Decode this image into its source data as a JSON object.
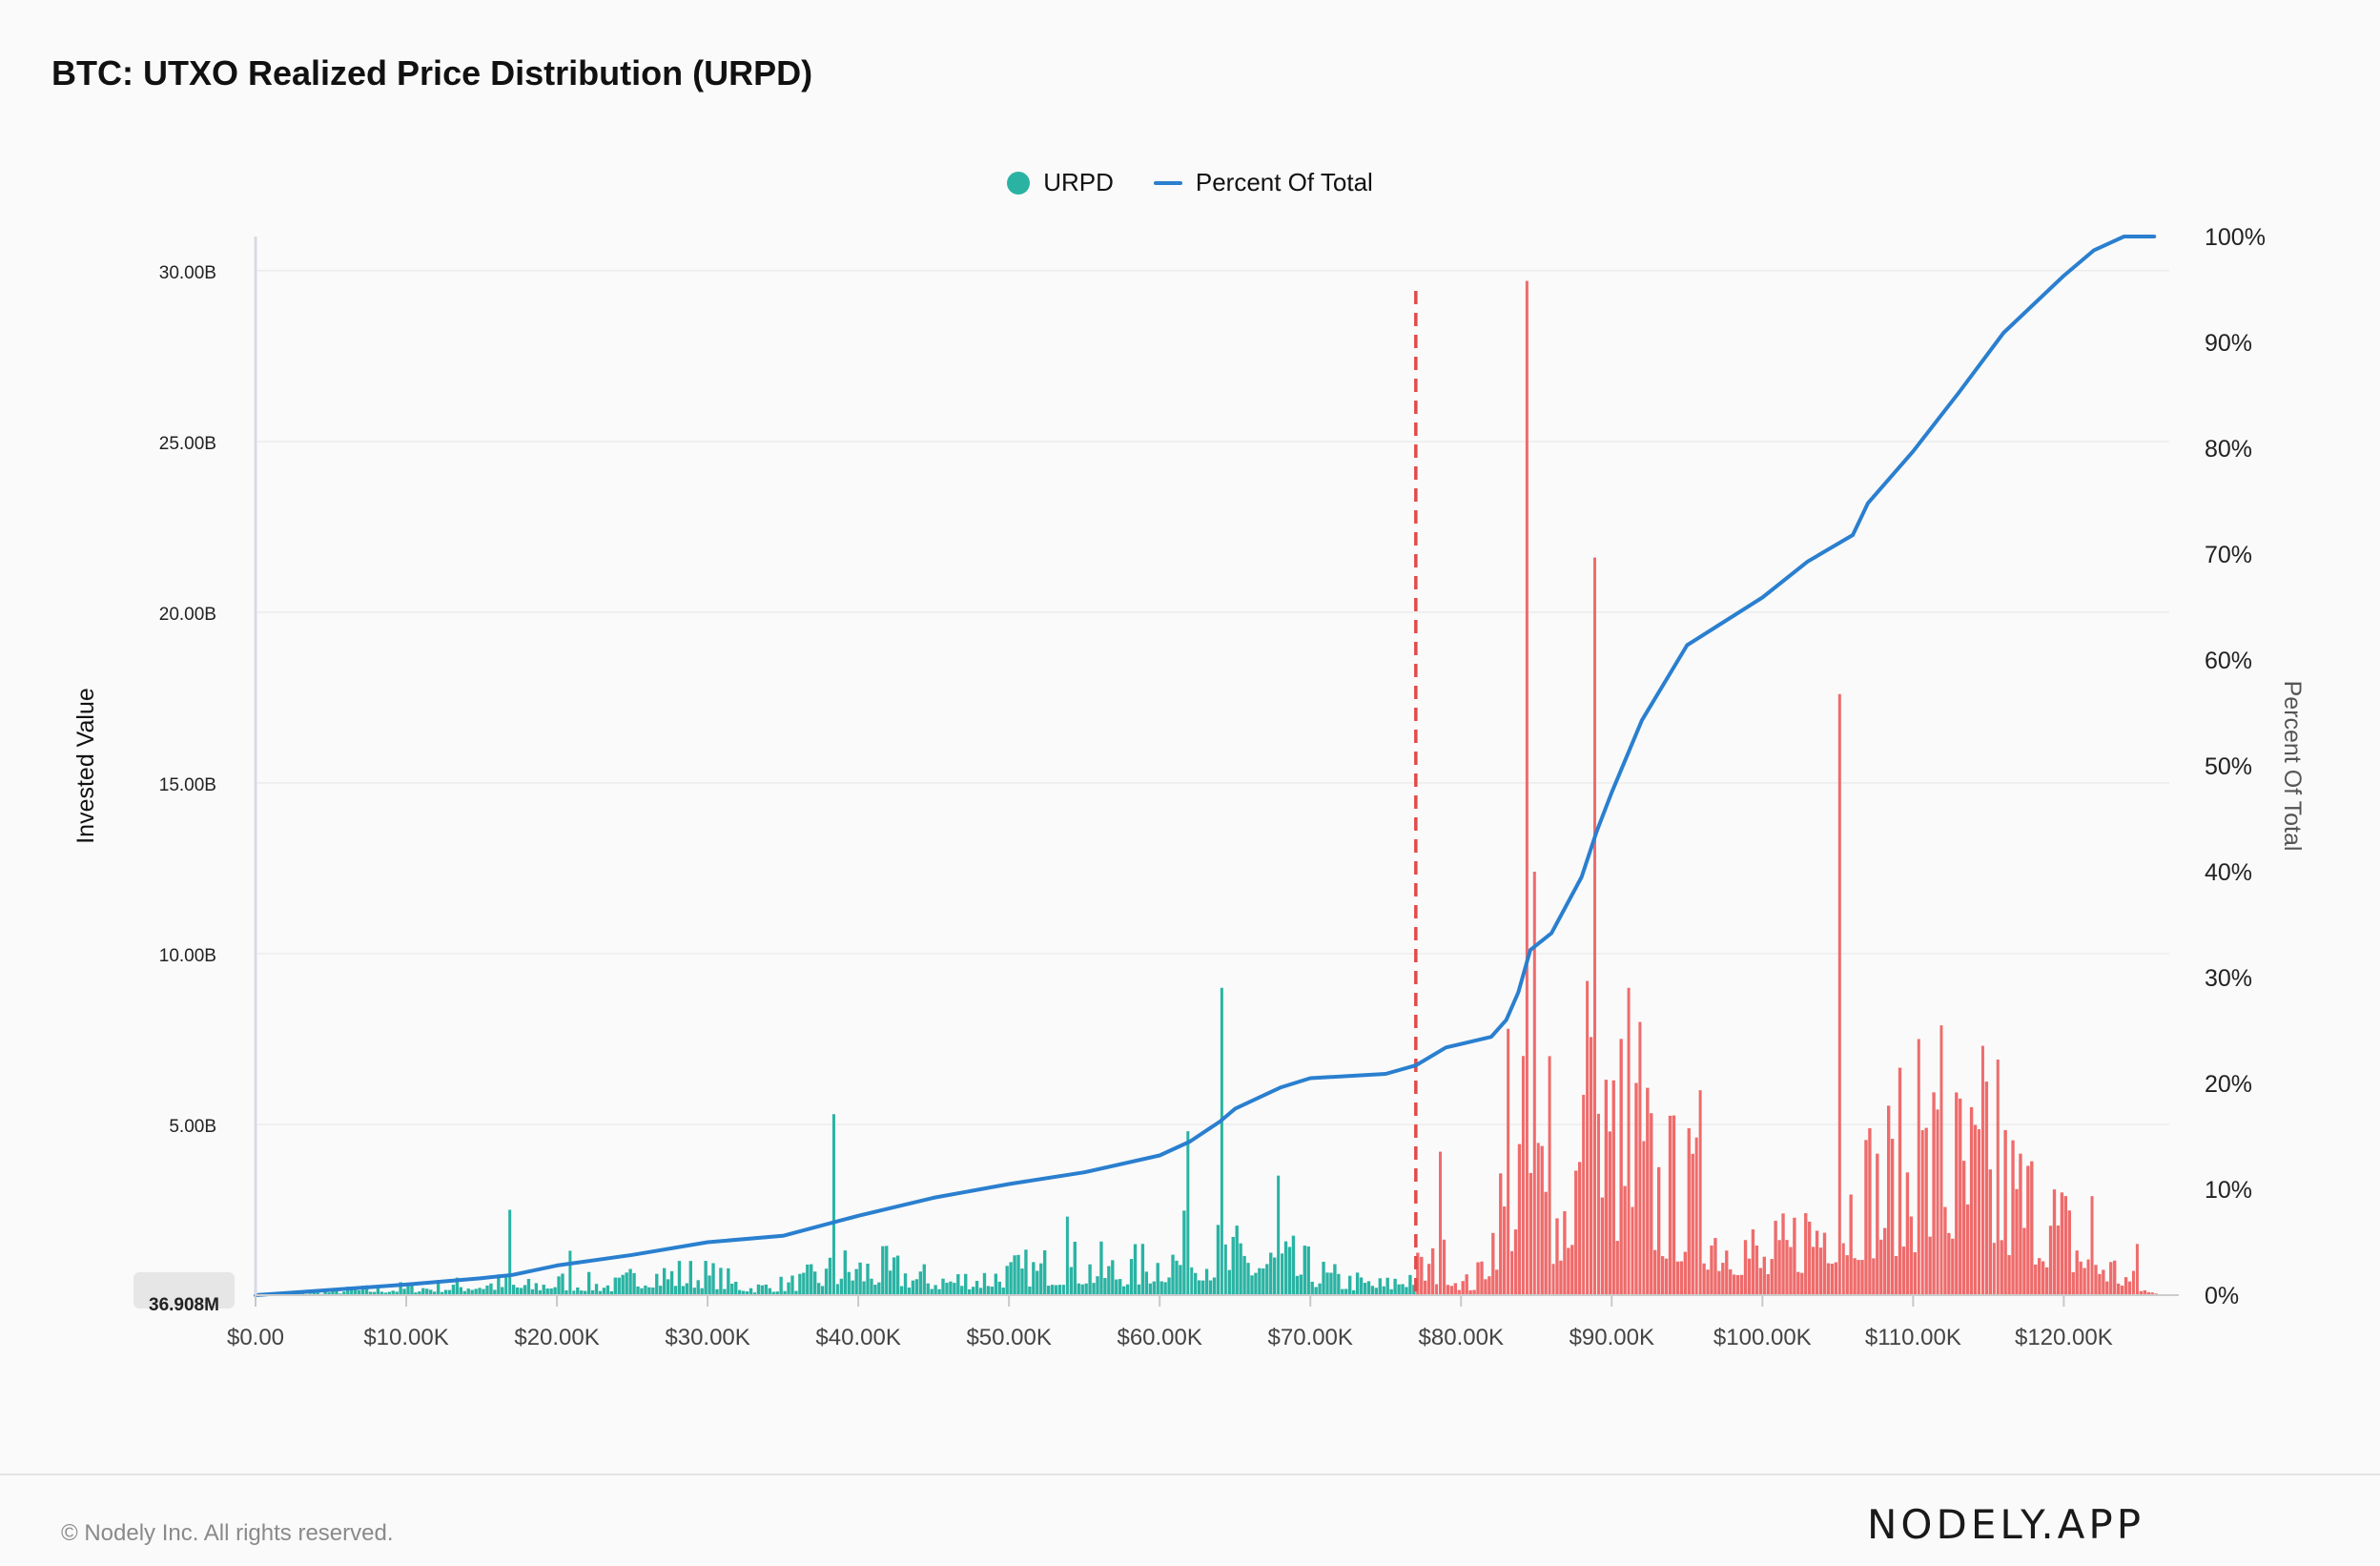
{
  "page": {
    "title": "BTC: UTXO Realized Price Distribution (URPD)",
    "copyright": "© Nodely Inc. All rights reserved.",
    "brand": "NODELY.APP"
  },
  "colors": {
    "below_price": "#2ab3a3",
    "above_price": "#ef6b6b",
    "cumulative_line": "#2a7fcf",
    "price_marker": "#e24b4b"
  },
  "chart_data": {
    "type": "bar",
    "legend": [
      {
        "name": "URPD",
        "symbol": "dot",
        "color": "#2ab3a3"
      },
      {
        "name": "Percent Of Total",
        "symbol": "line",
        "color": "#2a7fcf"
      }
    ],
    "legend_position": "top-center",
    "xlabel": "",
    "ylabel": "Invested Value",
    "y2label": "Percent Of Total",
    "xlim": [
      0,
      127000
    ],
    "ylim": [
      0,
      31000000000
    ],
    "y2lim": [
      0,
      100
    ],
    "x_ticks": [
      "$0.00",
      "$10.00K",
      "$20.00K",
      "$30.00K",
      "$40.00K",
      "$50.00K",
      "$60.00K",
      "$70.00K",
      "$80.00K",
      "$90.00K",
      "$100.00K",
      "$110.00K",
      "$120.00K"
    ],
    "x_tick_values": [
      0,
      10000,
      20000,
      30000,
      40000,
      50000,
      60000,
      70000,
      80000,
      90000,
      100000,
      110000,
      120000
    ],
    "y_ticks": [
      "5.00B",
      "10.00B",
      "15.00B",
      "20.00B",
      "25.00B",
      "30.00B"
    ],
    "y_tick_values": [
      5000000000,
      10000000000,
      15000000000,
      20000000000,
      25000000000,
      30000000000
    ],
    "y_min_badge": "36.908M",
    "y2_ticks": [
      "0%",
      "10%",
      "20%",
      "30%",
      "40%",
      "50%",
      "60%",
      "70%",
      "80%",
      "90%",
      "100%"
    ],
    "current_price_marker": 77000,
    "grid": true,
    "bar_width_price": 250,
    "peaks": [
      {
        "x": 16800,
        "value": 2500000000
      },
      {
        "x": 21000,
        "value": 1300000000
      },
      {
        "x": 38500,
        "value": 5300000000
      },
      {
        "x": 53800,
        "value": 2300000000
      },
      {
        "x": 62000,
        "value": 4800000000
      },
      {
        "x": 64200,
        "value": 9000000000
      },
      {
        "x": 68000,
        "value": 3500000000
      },
      {
        "x": 78600,
        "value": 4200000000
      },
      {
        "x": 83200,
        "value": 7800000000
      },
      {
        "x": 84300,
        "value": 29700000000
      },
      {
        "x": 84900,
        "value": 12400000000
      },
      {
        "x": 86000,
        "value": 7000000000
      },
      {
        "x": 88300,
        "value": 9200000000
      },
      {
        "x": 88900,
        "value": 21600000000
      },
      {
        "x": 91200,
        "value": 9000000000
      },
      {
        "x": 92000,
        "value": 8000000000
      },
      {
        "x": 95800,
        "value": 6000000000
      },
      {
        "x": 105200,
        "value": 17600000000
      },
      {
        "x": 110500,
        "value": 7500000000
      },
      {
        "x": 111800,
        "value": 7900000000
      },
      {
        "x": 114600,
        "value": 7300000000
      },
      {
        "x": 115600,
        "value": 6900000000
      },
      {
        "x": 121800,
        "value": 2900000000
      },
      {
        "x": 124800,
        "value": 1500000000
      }
    ],
    "envelope": [
      [
        0,
        0.04
      ],
      [
        3000,
        0.1
      ],
      [
        8000,
        0.25
      ],
      [
        12000,
        0.35
      ],
      [
        16000,
        0.5
      ],
      [
        18000,
        0.35
      ],
      [
        20000,
        0.55
      ],
      [
        24000,
        0.4
      ],
      [
        26000,
        0.9
      ],
      [
        30000,
        0.8
      ],
      [
        33000,
        0.3
      ],
      [
        36000,
        0.5
      ],
      [
        39000,
        1.1
      ],
      [
        42000,
        1.0
      ],
      [
        45000,
        0.6
      ],
      [
        48000,
        0.7
      ],
      [
        50000,
        0.9
      ],
      [
        54000,
        1.2
      ],
      [
        58000,
        1.0
      ],
      [
        62000,
        1.8
      ],
      [
        65000,
        1.5
      ],
      [
        68000,
        1.4
      ],
      [
        72000,
        0.6
      ],
      [
        75000,
        0.4
      ],
      [
        77000,
        1.0
      ],
      [
        79000,
        1.3
      ],
      [
        80000,
        0.5
      ],
      [
        81000,
        0.5
      ],
      [
        82000,
        2.3
      ],
      [
        83500,
        5.0
      ],
      [
        85000,
        5.5
      ],
      [
        86500,
        3.0
      ],
      [
        87500,
        5.0
      ],
      [
        89000,
        6.5
      ],
      [
        90500,
        6.0
      ],
      [
        92000,
        5.2
      ],
      [
        93500,
        4.0
      ],
      [
        95000,
        3.8
      ],
      [
        97000,
        2.6
      ],
      [
        99000,
        2.2
      ],
      [
        100000,
        1.3
      ],
      [
        101500,
        1.8
      ],
      [
        103000,
        2.8
      ],
      [
        105000,
        3.8
      ],
      [
        107000,
        4.2
      ],
      [
        109000,
        4.6
      ],
      [
        111000,
        5.3
      ],
      [
        113000,
        5.0
      ],
      [
        115000,
        4.5
      ],
      [
        117000,
        4.0
      ],
      [
        119000,
        3.2
      ],
      [
        121000,
        2.0
      ],
      [
        123000,
        1.2
      ],
      [
        124500,
        0.6
      ],
      [
        125500,
        0.15
      ],
      [
        126500,
        0.03
      ]
    ],
    "percent_of_total": {
      "x": [
        0,
        5000,
        10000,
        15000,
        17000,
        20000,
        25000,
        30000,
        35000,
        40000,
        45000,
        50000,
        55000,
        60000,
        62000,
        64000,
        65000,
        68000,
        70000,
        75000,
        77000,
        79000,
        82000,
        83000,
        83800,
        84600,
        86000,
        88000,
        89000,
        90000,
        92000,
        95000,
        97000,
        100000,
        103000,
        106000,
        107000,
        110000,
        113000,
        116000,
        120000,
        122000,
        124000,
        126000
      ],
      "y": [
        0,
        0.5,
        1.0,
        1.6,
        1.9,
        2.8,
        3.8,
        5.0,
        5.6,
        7.5,
        9.2,
        10.5,
        11.6,
        13.2,
        14.5,
        16.4,
        17.6,
        19.6,
        20.5,
        20.9,
        21.7,
        23.4,
        24.4,
        26.0,
        28.6,
        32.6,
        34.2,
        39.5,
        43.8,
        47.5,
        54.3,
        61.4,
        63.2,
        65.9,
        69.3,
        71.8,
        74.8,
        79.7,
        85.2,
        90.9,
        96.3,
        98.7,
        100,
        100
      ]
    }
  }
}
